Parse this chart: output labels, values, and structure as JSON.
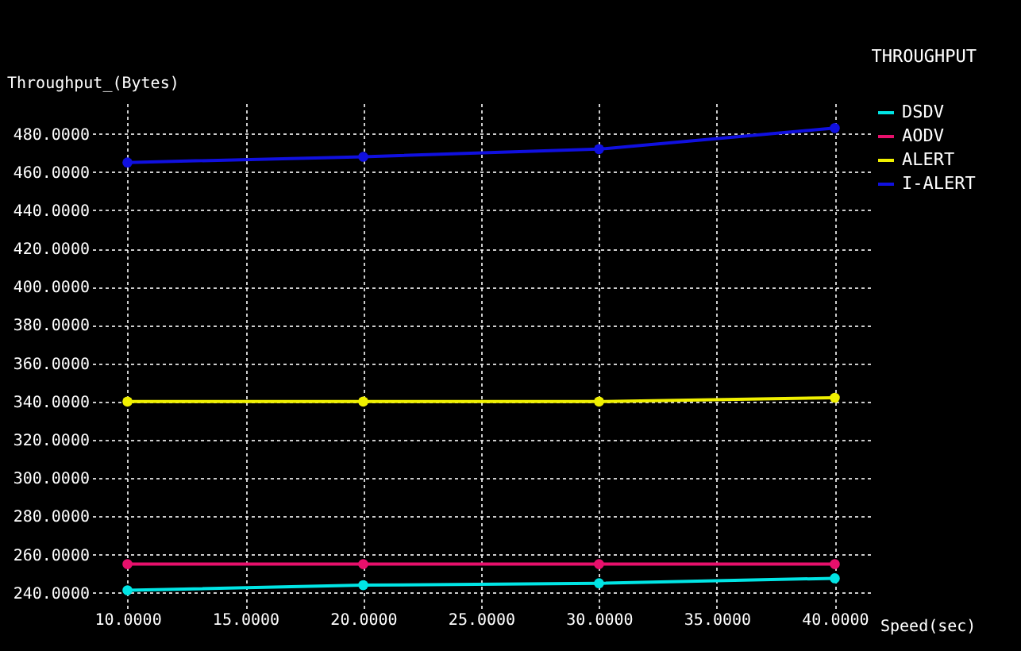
{
  "chart_data": {
    "type": "line",
    "title": "THROUGHPUT",
    "xlabel": "Speed(sec)",
    "ylabel": "Throughput_(Bytes)",
    "x": [
      10,
      20,
      30,
      40
    ],
    "series": [
      {
        "name": "DSDV",
        "color": "#00e5e5",
        "values": [
          241.3,
          244,
          245,
          247.6
        ]
      },
      {
        "name": "AODV",
        "color": "#e8106c",
        "values": [
          255,
          255,
          255,
          255
        ]
      },
      {
        "name": "ALERT",
        "color": "#f0f000",
        "values": [
          340,
          340,
          340,
          342
        ]
      },
      {
        "name": "I-ALERT",
        "color": "#1010e0",
        "values": [
          465,
          468,
          472,
          483
        ]
      }
    ],
    "xlim": [
      8.5,
      41.5
    ],
    "xticks": [
      {
        "value": 10,
        "label": "10.0000"
      },
      {
        "value": 15,
        "label": "15.0000"
      },
      {
        "value": 20,
        "label": "20.0000"
      },
      {
        "value": 25,
        "label": "25.0000"
      },
      {
        "value": 30,
        "label": "30.0000"
      },
      {
        "value": 35,
        "label": "35.0000"
      },
      {
        "value": 40,
        "label": "40.0000"
      }
    ],
    "ylim": [
      232,
      496
    ],
    "yticks": [
      {
        "value": 240,
        "label": "240.0000"
      },
      {
        "value": 260,
        "label": "260.0000"
      },
      {
        "value": 280,
        "label": "280.0000"
      },
      {
        "value": 300,
        "label": "300.0000"
      },
      {
        "value": 320,
        "label": "320.0000"
      },
      {
        "value": 340,
        "label": "340.0000"
      },
      {
        "value": 360,
        "label": "360.0000"
      },
      {
        "value": 380,
        "label": "380.0000"
      },
      {
        "value": 400,
        "label": "400.0000"
      },
      {
        "value": 420,
        "label": "420.0000"
      },
      {
        "value": 440,
        "label": "440.0000"
      },
      {
        "value": 460,
        "label": "460.0000"
      },
      {
        "value": 480,
        "label": "480.0000"
      }
    ],
    "grid": true,
    "legend": "top right",
    "marker": "circle",
    "line_style": "solid"
  }
}
